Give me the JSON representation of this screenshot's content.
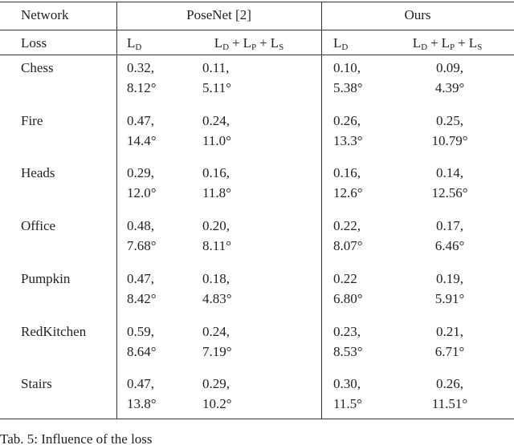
{
  "table": {
    "header": {
      "network": "Network",
      "groups": [
        "PoseNet [2]",
        "Ours"
      ],
      "loss": "Loss",
      "loss_columns": [
        [
          {
            "symbol": "L",
            "sub": "D"
          }
        ],
        [
          {
            "symbol": "L",
            "sub": "D"
          },
          {
            "op": "+",
            "symbol": "L",
            "sub": "P"
          },
          {
            "op": "+",
            "symbol": "L",
            "sub": "S"
          }
        ],
        [
          {
            "symbol": "L",
            "sub": "D"
          }
        ],
        [
          {
            "symbol": "L",
            "sub": "D"
          },
          {
            "op": "+",
            "symbol": "L",
            "sub": "P"
          },
          {
            "op": "+",
            "symbol": "L",
            "sub": "S"
          }
        ]
      ]
    },
    "rows": [
      {
        "label": "Chess",
        "cells": [
          [
            "0.32,",
            "8.12°"
          ],
          [
            "0.11,",
            "5.11°"
          ],
          [
            "0.10,",
            "5.38°"
          ],
          [
            "0.09,",
            "4.39°"
          ]
        ]
      },
      {
        "label": "Fire",
        "cells": [
          [
            "0.47,",
            "14.4°"
          ],
          [
            "0.24,",
            "11.0°"
          ],
          [
            "0.26,",
            "13.3°"
          ],
          [
            "0.25,",
            "10.79°"
          ]
        ]
      },
      {
        "label": "Heads",
        "cells": [
          [
            "0.29,",
            "12.0°"
          ],
          [
            "0.16,",
            "11.8°"
          ],
          [
            "0.16,",
            "12.6°"
          ],
          [
            "0.14,",
            "12.56°"
          ]
        ]
      },
      {
        "label": "Office",
        "cells": [
          [
            "0.48,",
            "7.68°"
          ],
          [
            "0.20,",
            "8.11°"
          ],
          [
            "0.22,",
            "8.07°"
          ],
          [
            "0.17,",
            "6.46°"
          ]
        ]
      },
      {
        "label": "Pumpkin",
        "cells": [
          [
            "0.47,",
            "8.42°"
          ],
          [
            "0.18,",
            "4.83°"
          ],
          [
            "0.22",
            "6.80°"
          ],
          [
            "0.19,",
            "5.91°"
          ]
        ]
      },
      {
        "label": "RedKitchen",
        "cells": [
          [
            "0.59,",
            "8.64°"
          ],
          [
            "0.24,",
            "7.19°"
          ],
          [
            "0.23,",
            "8.53°"
          ],
          [
            "0.21,",
            "6.71°"
          ]
        ]
      },
      {
        "label": "Stairs",
        "cells": [
          [
            "0.47,",
            "13.8°"
          ],
          [
            "0.29,",
            "10.2°"
          ],
          [
            "0.30,",
            "11.5°"
          ],
          [
            "0.26,",
            "11.51°"
          ]
        ]
      }
    ],
    "caption": "Tab. 5: Influence of the loss"
  }
}
